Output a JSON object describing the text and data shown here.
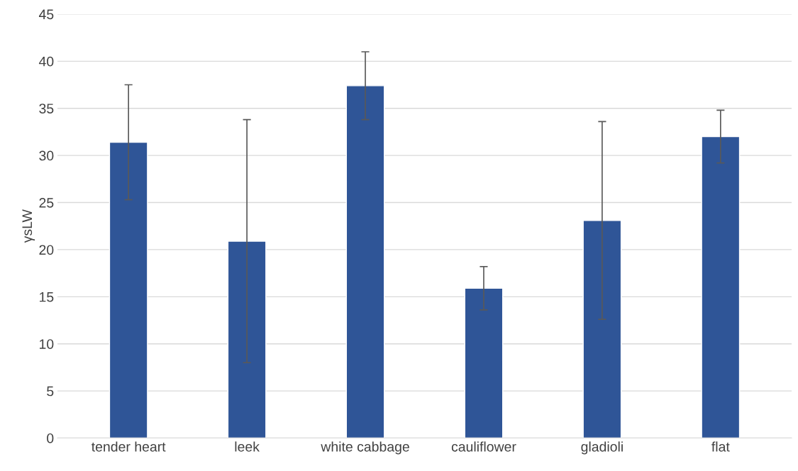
{
  "chart_data": {
    "type": "bar",
    "ylabel": "γsLW",
    "categories": [
      "tender heart",
      "leek",
      "white cabbage",
      "cauliflower",
      "gladioli",
      "flat"
    ],
    "values": [
      31.4,
      20.9,
      37.4,
      15.9,
      23.1,
      32.0
    ],
    "errors": [
      6.1,
      12.9,
      3.6,
      2.3,
      10.5,
      2.8
    ],
    "color": "#2f5597",
    "ylim": [
      0,
      45
    ],
    "yticks": [
      0,
      5,
      10,
      15,
      20,
      25,
      30,
      35,
      40,
      45
    ],
    "grid": "y"
  }
}
